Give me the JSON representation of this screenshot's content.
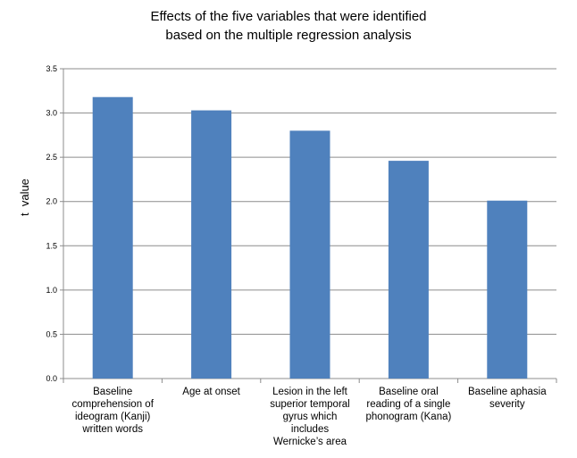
{
  "chart_data": {
    "type": "bar",
    "title_lines": [
      "Effects of the five variables that were identified",
      "based on the multiple regression analysis"
    ],
    "xlabel": "",
    "ylabel": "t  value",
    "categories": [
      [
        "Baseline",
        "comprehension of",
        "ideogram (Kanji)",
        "written words"
      ],
      [
        "Age at onset"
      ],
      [
        "Lesion in the left",
        "superior temporal",
        "gyrus which",
        "includes",
        "Wernicke’s area"
      ],
      [
        "Baseline oral",
        "reading of a single",
        "phonogram (Kana)"
      ],
      [
        "Baseline aphasia",
        "severity"
      ]
    ],
    "values": [
      3.18,
      3.03,
      2.8,
      2.46,
      2.01
    ],
    "ylim": [
      0,
      3.5
    ],
    "yticks": [
      "0.0",
      "0.5",
      "1.0",
      "1.5",
      "2.0",
      "2.5",
      "3.0",
      "3.5"
    ],
    "grid": true,
    "bar_color": "#4f81bd"
  }
}
